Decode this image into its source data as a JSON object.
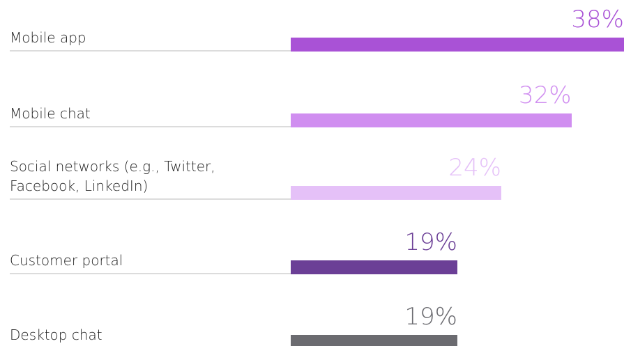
{
  "chart_data": {
    "type": "bar",
    "orientation": "horizontal",
    "categories": [
      "Mobile app",
      "Mobile chat",
      "Social networks (e.g., Twitter, Facebook, LinkedIn)",
      "Customer portal",
      "Desktop chat"
    ],
    "values": [
      38,
      32,
      24,
      19,
      19
    ],
    "value_labels": [
      "38%",
      "32%",
      "24%",
      "19%",
      "19%"
    ],
    "colors": [
      "#a952d6",
      "#d08ef0",
      "#e5c1f8",
      "#6b3f96",
      "#6b6b70"
    ]
  }
}
